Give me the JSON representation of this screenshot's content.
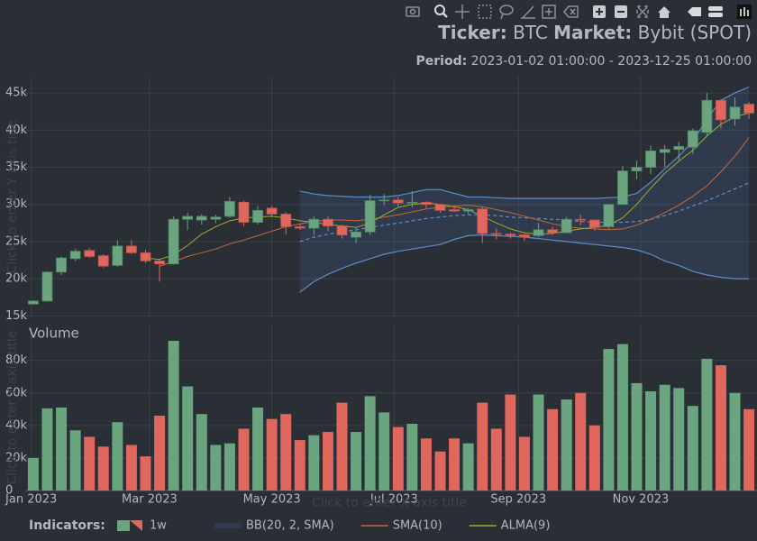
{
  "chart_data": [
    {
      "type": "candlestick",
      "title": {
        "ticker_label": "Ticker:",
        "ticker": "BTC",
        "market_label": "Market:",
        "market": "Bybit (SPOT)"
      },
      "subtitle": {
        "label": "Period:",
        "value": "2023-01-02 01:00:00 - 2023-12-25 01:00:00"
      },
      "y_placeholder": "Click to enter Y axis title",
      "x": [
        "2023-01-02",
        "2023-01-09",
        "2023-01-16",
        "2023-01-23",
        "2023-01-30",
        "2023-02-06",
        "2023-02-13",
        "2023-02-20",
        "2023-02-27",
        "2023-03-06",
        "2023-03-13",
        "2023-03-20",
        "2023-03-27",
        "2023-04-03",
        "2023-04-10",
        "2023-04-17",
        "2023-04-24",
        "2023-05-01",
        "2023-05-08",
        "2023-05-15",
        "2023-05-22",
        "2023-05-29",
        "2023-06-05",
        "2023-06-12",
        "2023-06-19",
        "2023-06-26",
        "2023-07-03",
        "2023-07-10",
        "2023-07-17",
        "2023-07-24",
        "2023-07-31",
        "2023-08-07",
        "2023-08-14",
        "2023-08-21",
        "2023-08-28",
        "2023-09-04",
        "2023-09-11",
        "2023-09-18",
        "2023-09-25",
        "2023-10-02",
        "2023-10-09",
        "2023-10-16",
        "2023-10-23",
        "2023-10-30",
        "2023-11-06",
        "2023-11-13",
        "2023-11-20",
        "2023-11-27",
        "2023-12-04",
        "2023-12-11",
        "2023-12-18",
        "2023-12-25"
      ],
      "xlim": [
        "2022-12-29",
        "2023-12-29"
      ],
      "ylim": [
        14800,
        47200
      ],
      "yticks": [
        {
          "value": 15000,
          "label": "15k"
        },
        {
          "value": 20000,
          "label": "20k"
        },
        {
          "value": 25000,
          "label": "25k"
        },
        {
          "value": 30000,
          "label": "30k"
        },
        {
          "value": 35000,
          "label": "35k"
        },
        {
          "value": 40000,
          "label": "40k"
        },
        {
          "value": 45000,
          "label": "45k"
        }
      ],
      "grid": true,
      "legend_title": "Indicators:",
      "legend_position": "bottom-left",
      "candles": {
        "name": "1w",
        "increasing_color": "#6aa57f",
        "decreasing_color": "#e0675e",
        "open": [
          16600,
          17000,
          20900,
          22700,
          23800,
          23100,
          21800,
          24400,
          23500,
          22400,
          22000,
          28000,
          27900,
          28000,
          28400,
          30300,
          27600,
          29500,
          28700,
          27000,
          26800,
          28000,
          27100,
          25600,
          26300,
          30500,
          30600,
          30200,
          30300,
          30000,
          29300,
          29100,
          29400,
          26100,
          26000,
          25900,
          25800,
          26600,
          26200,
          28000,
          27900,
          27000,
          30000,
          34500,
          35000,
          37000,
          37400,
          37700,
          39700,
          44000,
          41500,
          43500
        ],
        "high": [
          17100,
          21000,
          23000,
          24000,
          24100,
          23300,
          25200,
          25200,
          23900,
          22600,
          28400,
          28900,
          28700,
          28600,
          31000,
          30500,
          29800,
          29800,
          29000,
          27400,
          28400,
          28400,
          27300,
          26800,
          31300,
          31400,
          31000,
          31800,
          30400,
          30100,
          29700,
          29500,
          29700,
          26800,
          26200,
          26100,
          27500,
          27000,
          28300,
          28600,
          28000,
          30100,
          35200,
          35900,
          37900,
          38000,
          38400,
          40200,
          45000,
          44200,
          44400,
          43800
        ],
        "low": [
          16500,
          16900,
          20500,
          22400,
          22800,
          21500,
          21600,
          23300,
          22100,
          19600,
          21900,
          26600,
          27300,
          27500,
          28200,
          27100,
          27300,
          28400,
          26000,
          26600,
          25900,
          26400,
          25400,
          24800,
          25900,
          29900,
          29700,
          29600,
          29500,
          28900,
          29000,
          28700,
          24800,
          25300,
          25400,
          25100,
          25600,
          25900,
          26100,
          27200,
          26500,
          26700,
          29900,
          33400,
          34100,
          35000,
          35700,
          36800,
          39200,
          40200,
          40600,
          41500
        ],
        "close": [
          17000,
          20900,
          22800,
          23700,
          23000,
          21700,
          24400,
          23500,
          22400,
          22000,
          28000,
          28400,
          28400,
          28300,
          30400,
          27600,
          29200,
          28700,
          27000,
          26800,
          28000,
          27100,
          25900,
          26300,
          30500,
          30600,
          30200,
          30300,
          30000,
          29200,
          29100,
          29300,
          26100,
          26000,
          25800,
          25600,
          26600,
          26200,
          28000,
          27900,
          26900,
          30000,
          34500,
          35000,
          37200,
          37400,
          37800,
          39900,
          44000,
          41400,
          43100,
          42300
        ]
      },
      "series": [
        {
          "name": "BB(20, 2, SMA)",
          "color": "#5b8ec6",
          "fill": "rgba(70,110,160,0.22)",
          "upper": [
            null,
            null,
            null,
            null,
            null,
            null,
            null,
            null,
            null,
            null,
            null,
            null,
            null,
            null,
            null,
            null,
            null,
            null,
            null,
            31800,
            31400,
            31200,
            31100,
            31000,
            31000,
            31000,
            31200,
            31600,
            32000,
            32000,
            31500,
            31000,
            31000,
            30900,
            30800,
            30800,
            30800,
            30800,
            30800,
            30800,
            30800,
            30900,
            31000,
            31500,
            33000,
            34800,
            36500,
            38500,
            41500,
            44000,
            45000,
            45800
          ],
          "middle": [
            null,
            null,
            null,
            null,
            null,
            null,
            null,
            null,
            null,
            null,
            null,
            null,
            null,
            null,
            null,
            null,
            null,
            null,
            null,
            25000,
            25600,
            26000,
            26300,
            26600,
            26900,
            27200,
            27500,
            27800,
            28100,
            28300,
            28500,
            28600,
            28600,
            28500,
            28300,
            28200,
            28100,
            28000,
            27900,
            27700,
            27600,
            27600,
            27600,
            27700,
            28000,
            28500,
            29100,
            29800,
            30500,
            31300,
            32100,
            32900
          ],
          "lower": [
            null,
            null,
            null,
            null,
            null,
            null,
            null,
            null,
            null,
            null,
            null,
            null,
            null,
            null,
            null,
            null,
            null,
            null,
            null,
            18200,
            19600,
            20600,
            21400,
            22100,
            22700,
            23300,
            23700,
            24000,
            24300,
            24600,
            25300,
            25800,
            25900,
            25800,
            25700,
            25600,
            25400,
            25200,
            25000,
            24800,
            24600,
            24400,
            24200,
            23900,
            23300,
            22400,
            21800,
            21000,
            20500,
            20200,
            20000,
            20000
          ]
        },
        {
          "name": "SMA(10)",
          "color": "#c8673a",
          "values": [
            null,
            null,
            null,
            null,
            null,
            null,
            null,
            null,
            null,
            21700,
            22300,
            23000,
            23500,
            24000,
            24700,
            25200,
            25800,
            26400,
            27000,
            27400,
            27700,
            27900,
            27900,
            27800,
            28000,
            28300,
            28600,
            29000,
            29400,
            29600,
            29800,
            29900,
            29700,
            29300,
            28900,
            28400,
            27900,
            27400,
            27000,
            26800,
            26700,
            26600,
            26700,
            27200,
            28000,
            28900,
            29900,
            31100,
            32500,
            34400,
            36500,
            39000
          ]
        },
        {
          "name": "ALMA(9)",
          "color": "#a3aa2c",
          "values": [
            null,
            null,
            null,
            null,
            null,
            null,
            null,
            null,
            22800,
            22600,
            23200,
            24500,
            26000,
            27000,
            27800,
            28200,
            28300,
            28400,
            28200,
            27800,
            27600,
            27300,
            27100,
            26900,
            27500,
            28600,
            29600,
            30000,
            30200,
            30000,
            29700,
            29300,
            28400,
            27500,
            26700,
            26200,
            26000,
            26100,
            26400,
            26700,
            26900,
            27200,
            28200,
            30000,
            32200,
            34200,
            35800,
            37300,
            39200,
            40800,
            41800,
            42300
          ]
        }
      ]
    },
    {
      "type": "bar",
      "title": "Volume",
      "y_placeholder": "Click to enter Y axis title",
      "x_placeholder": "Click to enter X axis title",
      "x": [
        "2023-01-02",
        "2023-01-09",
        "2023-01-16",
        "2023-01-23",
        "2023-01-30",
        "2023-02-06",
        "2023-02-13",
        "2023-02-20",
        "2023-02-27",
        "2023-03-06",
        "2023-03-13",
        "2023-03-20",
        "2023-03-27",
        "2023-04-03",
        "2023-04-10",
        "2023-04-17",
        "2023-04-24",
        "2023-05-01",
        "2023-05-08",
        "2023-05-15",
        "2023-05-22",
        "2023-05-29",
        "2023-06-05",
        "2023-06-12",
        "2023-06-19",
        "2023-06-26",
        "2023-07-03",
        "2023-07-10",
        "2023-07-17",
        "2023-07-24",
        "2023-07-31",
        "2023-08-07",
        "2023-08-14",
        "2023-08-21",
        "2023-08-28",
        "2023-09-04",
        "2023-09-11",
        "2023-09-18",
        "2023-09-25",
        "2023-10-02",
        "2023-10-09",
        "2023-10-16",
        "2023-10-23",
        "2023-10-30",
        "2023-11-06",
        "2023-11-13",
        "2023-11-20",
        "2023-11-27",
        "2023-12-04",
        "2023-12-11",
        "2023-12-18",
        "2023-12-25"
      ],
      "values": [
        20000,
        50500,
        51000,
        37000,
        33000,
        27000,
        42000,
        28000,
        21000,
        46000,
        92000,
        64000,
        47000,
        28000,
        29000,
        38000,
        51000,
        44000,
        47000,
        31000,
        34000,
        36000,
        54000,
        36000,
        58000,
        48000,
        39000,
        41000,
        32000,
        24000,
        32000,
        29000,
        54000,
        38000,
        59000,
        33000,
        59000,
        50000,
        56000,
        60000,
        40000,
        87000,
        90000,
        66000,
        61000,
        65000,
        63000,
        52000,
        81000,
        77000,
        60000,
        50000
      ],
      "xlim": [
        "2022-12-29",
        "2023-12-29"
      ],
      "xticks": [
        {
          "value": "2023-01-01",
          "label": "Jan 2023"
        },
        {
          "value": "2023-03-01",
          "label": "Mar 2023"
        },
        {
          "value": "2023-05-01",
          "label": "May 2023"
        },
        {
          "value": "2023-07-01",
          "label": "Jul 2023"
        },
        {
          "value": "2023-09-01",
          "label": "Sep 2023"
        },
        {
          "value": "2023-11-01",
          "label": "Nov 2023"
        }
      ],
      "ylim": [
        0,
        102000
      ],
      "yticks": [
        0,
        {
          "value": 20000,
          "label": "20k"
        },
        {
          "value": 40000,
          "label": "40k"
        },
        {
          "value": 60000,
          "label": "60k"
        },
        {
          "value": 80000,
          "label": "80k"
        }
      ],
      "grid": true
    }
  ]
}
